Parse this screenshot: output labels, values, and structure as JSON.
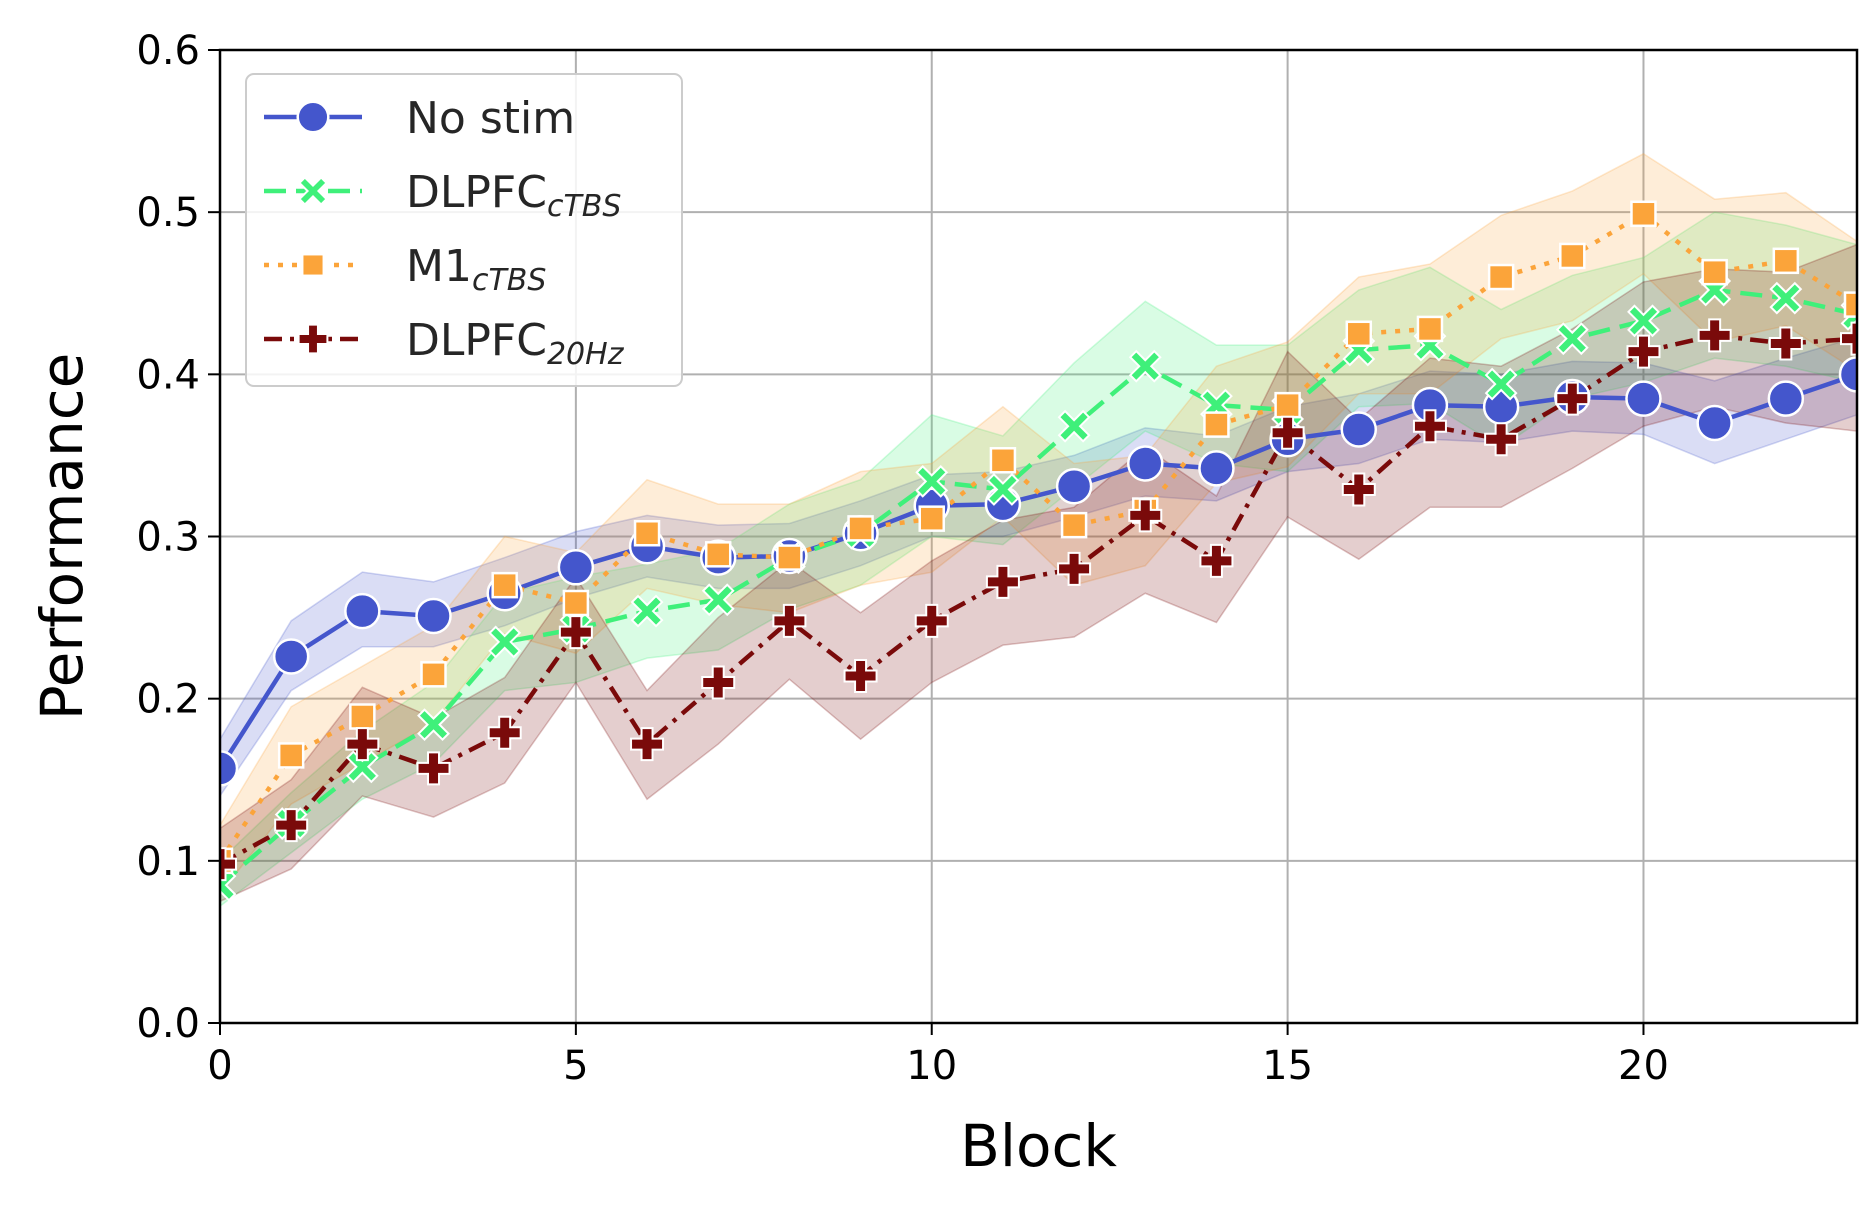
{
  "chart_data": {
    "type": "line",
    "xlabel": "Block",
    "ylabel": "Performance",
    "xlim": [
      0,
      23
    ],
    "ylim": [
      0.0,
      0.6
    ],
    "xticks": [
      0,
      5,
      10,
      15,
      20
    ],
    "xtick_labels": [
      "0",
      "5",
      "10",
      "15",
      "20"
    ],
    "yticks": [
      0.0,
      0.1,
      0.2,
      0.3,
      0.4,
      0.5,
      0.6
    ],
    "ytick_labels": [
      "0.0",
      "0.1",
      "0.2",
      "0.3",
      "0.4",
      "0.5",
      "0.6"
    ],
    "grid": true,
    "legend_position": "top-left",
    "x": [
      0,
      1,
      2,
      3,
      4,
      5,
      6,
      7,
      8,
      9,
      10,
      11,
      12,
      13,
      14,
      15,
      16,
      17,
      18,
      19,
      20,
      21,
      22,
      23
    ],
    "series": [
      {
        "name": "No stim",
        "label_main": "No stim",
        "label_sub": "",
        "color": "#4456cc",
        "marker": "circle",
        "linestyle": "solid",
        "values": [
          0.157,
          0.226,
          0.254,
          0.251,
          0.265,
          0.281,
          0.294,
          0.287,
          0.288,
          0.302,
          0.319,
          0.32,
          0.331,
          0.345,
          0.342,
          0.36,
          0.366,
          0.381,
          0.38,
          0.386,
          0.385,
          0.37,
          0.385,
          0.4
        ],
        "lower": [
          0.14,
          0.205,
          0.232,
          0.232,
          0.245,
          0.262,
          0.275,
          0.268,
          0.268,
          0.282,
          0.3,
          0.3,
          0.312,
          0.325,
          0.322,
          0.34,
          0.345,
          0.36,
          0.358,
          0.365,
          0.363,
          0.345,
          0.36,
          0.375
        ],
        "upper": [
          0.175,
          0.248,
          0.278,
          0.272,
          0.287,
          0.303,
          0.313,
          0.307,
          0.308,
          0.322,
          0.338,
          0.34,
          0.35,
          0.367,
          0.362,
          0.38,
          0.388,
          0.402,
          0.4,
          0.408,
          0.407,
          0.396,
          0.41,
          0.423
        ]
      },
      {
        "name": "DLPFC cTBS",
        "label_main": "DLPFC",
        "label_sub": "cTBS",
        "color": "#3ff07a",
        "marker": "x",
        "linestyle": "dashed",
        "values": [
          0.085,
          0.123,
          0.158,
          0.184,
          0.235,
          0.243,
          0.254,
          0.261,
          0.287,
          0.302,
          0.334,
          0.329,
          0.368,
          0.405,
          0.381,
          0.378,
          0.415,
          0.418,
          0.394,
          0.422,
          0.433,
          0.452,
          0.447,
          0.437
        ],
        "lower": [
          0.072,
          0.105,
          0.138,
          0.16,
          0.205,
          0.21,
          0.225,
          0.23,
          0.255,
          0.27,
          0.3,
          0.295,
          0.33,
          0.365,
          0.345,
          0.34,
          0.38,
          0.382,
          0.355,
          0.385,
          0.395,
          0.41,
          0.405,
          0.395
        ],
        "upper": [
          0.1,
          0.142,
          0.18,
          0.21,
          0.265,
          0.275,
          0.283,
          0.292,
          0.32,
          0.335,
          0.375,
          0.362,
          0.407,
          0.445,
          0.418,
          0.418,
          0.452,
          0.466,
          0.44,
          0.461,
          0.472,
          0.5,
          0.492,
          0.48
        ]
      },
      {
        "name": "M1 cTBS",
        "label_main": "M1",
        "label_sub": "cTBS",
        "color": "#fba43a",
        "marker": "square",
        "linestyle": "dotted",
        "values": [
          0.1,
          0.165,
          0.189,
          0.215,
          0.27,
          0.259,
          0.302,
          0.289,
          0.287,
          0.305,
          0.311,
          0.347,
          0.307,
          0.316,
          0.369,
          0.381,
          0.425,
          0.428,
          0.46,
          0.473,
          0.499,
          0.463,
          0.47,
          0.443
        ],
        "lower": [
          0.08,
          0.135,
          0.16,
          0.185,
          0.24,
          0.228,
          0.268,
          0.258,
          0.253,
          0.27,
          0.278,
          0.312,
          0.27,
          0.282,
          0.333,
          0.343,
          0.388,
          0.388,
          0.422,
          0.433,
          0.462,
          0.42,
          0.43,
          0.402
        ],
        "upper": [
          0.122,
          0.195,
          0.22,
          0.245,
          0.3,
          0.29,
          0.335,
          0.32,
          0.32,
          0.34,
          0.345,
          0.38,
          0.345,
          0.35,
          0.405,
          0.42,
          0.46,
          0.468,
          0.498,
          0.513,
          0.536,
          0.508,
          0.512,
          0.482
        ]
      },
      {
        "name": "DLPFC 20Hz",
        "label_main": "DLPFC",
        "label_sub": "20Hz",
        "color": "#7a0a0a",
        "marker": "plus",
        "linestyle": "dashdot",
        "values": [
          0.098,
          0.122,
          0.172,
          0.157,
          0.179,
          0.241,
          0.172,
          0.21,
          0.248,
          0.214,
          0.248,
          0.272,
          0.28,
          0.313,
          0.285,
          0.364,
          0.329,
          0.368,
          0.36,
          0.385,
          0.414,
          0.424,
          0.419,
          0.422
        ],
        "lower": [
          0.075,
          0.095,
          0.14,
          0.127,
          0.148,
          0.21,
          0.138,
          0.172,
          0.212,
          0.175,
          0.21,
          0.233,
          0.238,
          0.265,
          0.247,
          0.312,
          0.286,
          0.318,
          0.318,
          0.342,
          0.368,
          0.38,
          0.37,
          0.365
        ],
        "upper": [
          0.12,
          0.15,
          0.207,
          0.188,
          0.213,
          0.275,
          0.205,
          0.25,
          0.285,
          0.253,
          0.285,
          0.31,
          0.318,
          0.355,
          0.325,
          0.414,
          0.372,
          0.41,
          0.405,
          0.428,
          0.457,
          0.465,
          0.463,
          0.48
        ]
      }
    ]
  }
}
